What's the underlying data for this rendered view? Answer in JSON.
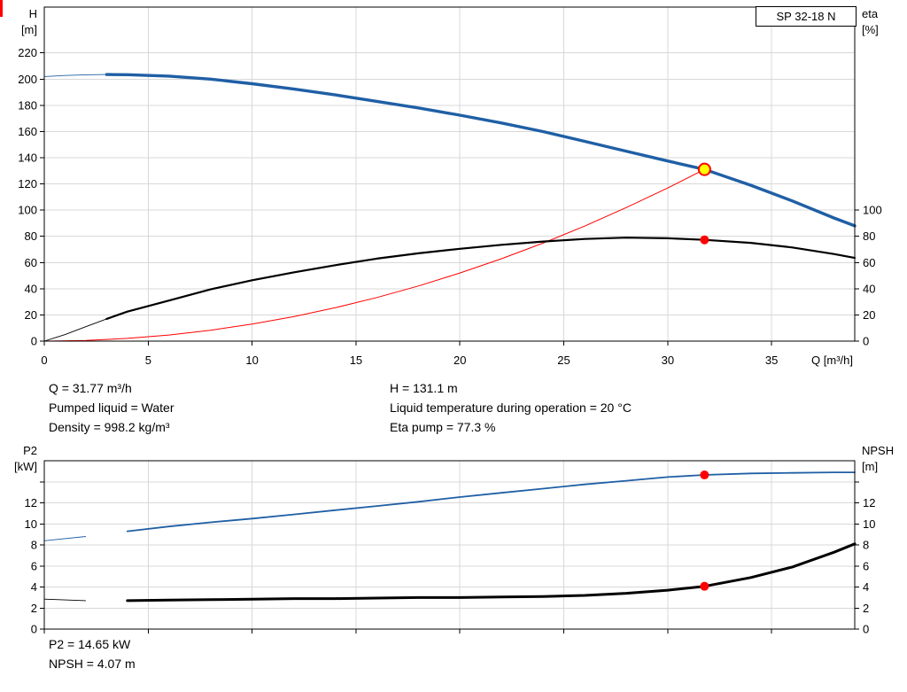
{
  "title_box": {
    "label": "SP 32-18 N"
  },
  "operating_point_info": {
    "left": [
      "Q = 31.77 m³/h",
      "Pumped liquid = Water",
      "Density = 998.2 kg/m³"
    ],
    "right": [
      "H = 131.1 m",
      "Liquid temperature during operation = 20 °C",
      "Eta pump = 77.3 %"
    ]
  },
  "result_info": [
    "P2 = 14.65 kW",
    "NPSH = 4.07 m"
  ],
  "colors": {
    "curve_blue": "#1f5fa5",
    "curve_black": "#000000",
    "curve_red": "#ff0000",
    "duty_fill": "#ffff00",
    "grid": "#d8d8d8",
    "frame": "#000000"
  },
  "chart_data": [
    {
      "id": "head-efficiency",
      "type": "line",
      "x_axis": {
        "label": "Q [m³/h]",
        "min": 0,
        "max": 39,
        "ticks": [
          0,
          5,
          10,
          15,
          20,
          25,
          30,
          35
        ],
        "show_tick_labels": true
      },
      "y_left": {
        "label_lines": [
          "H",
          "[m]"
        ],
        "min": 0,
        "max": 255,
        "ticks": [
          0,
          20,
          40,
          60,
          80,
          100,
          120,
          140,
          160,
          180,
          200,
          220
        ]
      },
      "y_right": {
        "label_lines": [
          "eta",
          "[%]"
        ],
        "ticks": [
          0,
          20,
          40,
          60,
          80,
          100
        ]
      },
      "series": [
        {
          "name": "system-curve",
          "color_key": "curve_red",
          "width": 1,
          "points": [
            [
              0,
              0
            ],
            [
              2,
              0.5
            ],
            [
              4,
              2.1
            ],
            [
              6,
              4.7
            ],
            [
              8,
              8.3
            ],
            [
              10,
              13.0
            ],
            [
              12,
              18.7
            ],
            [
              14,
              25.5
            ],
            [
              16,
              33.3
            ],
            [
              18,
              42.1
            ],
            [
              20,
              52.0
            ],
            [
              22,
              62.9
            ],
            [
              24,
              74.8
            ],
            [
              26,
              87.8
            ],
            [
              28,
              101.9
            ],
            [
              30,
              116.9
            ],
            [
              31.77,
              131.1
            ]
          ]
        },
        {
          "name": "efficiency",
          "color_key": "curve_black",
          "width": 2.2,
          "thin_until": 3,
          "points": [
            [
              0,
              0
            ],
            [
              1,
              5
            ],
            [
              2,
              11
            ],
            [
              3,
              17
            ],
            [
              4,
              22.5
            ],
            [
              6,
              31
            ],
            [
              8,
              39.5
            ],
            [
              10,
              46.5
            ],
            [
              12,
              52.5
            ],
            [
              14,
              58
            ],
            [
              16,
              63
            ],
            [
              18,
              67
            ],
            [
              20,
              70.5
            ],
            [
              22,
              73.5
            ],
            [
              24,
              76
            ],
            [
              26,
              78
            ],
            [
              28,
              79
            ],
            [
              30,
              78.5
            ],
            [
              31.77,
              77.3
            ],
            [
              34,
              75
            ],
            [
              36,
              71.5
            ],
            [
              38,
              66.5
            ],
            [
              39,
              63.5
            ]
          ]
        },
        {
          "name": "head",
          "color_key": "curve_blue",
          "width": 3.4,
          "thin_until": 3,
          "points": [
            [
              0,
              202
            ],
            [
              1,
              202.8
            ],
            [
              2,
              203.3
            ],
            [
              3,
              203.5
            ],
            [
              4,
              203.4
            ],
            [
              6,
              202.3
            ],
            [
              8,
              200
            ],
            [
              10,
              196.5
            ],
            [
              12,
              192.5
            ],
            [
              14,
              188
            ],
            [
              16,
              183
            ],
            [
              18,
              178
            ],
            [
              20,
              172.5
            ],
            [
              22,
              166.5
            ],
            [
              24,
              160
            ],
            [
              26,
              152.5
            ],
            [
              28,
              145
            ],
            [
              30,
              137.5
            ],
            [
              31.77,
              131.1
            ],
            [
              34,
              119
            ],
            [
              36,
              107
            ],
            [
              38,
              94
            ],
            [
              39,
              88
            ]
          ]
        }
      ],
      "markers": [
        {
          "name": "duty-point",
          "x": 31.77,
          "y": 131.1,
          "r": 6.5,
          "fill_key": "duty_fill",
          "stroke_key": "curve_red",
          "stroke_width": 2
        },
        {
          "name": "efficiency-point",
          "x": 31.77,
          "y": 77.3,
          "r": 5,
          "fill_key": "curve_red"
        }
      ]
    },
    {
      "id": "power-npsh",
      "type": "line",
      "x_axis": {
        "label": "",
        "min": 0,
        "max": 39,
        "ticks": [
          0,
          5,
          10,
          15,
          20,
          25,
          30,
          35
        ],
        "show_tick_labels": false
      },
      "y_left": {
        "label_lines": [
          "P2",
          "[kW]"
        ],
        "min": 0,
        "max": 16,
        "ticks": [
          0,
          2,
          4,
          6,
          8,
          10,
          12,
          14
        ],
        "tick_labels": [
          "0",
          "2",
          "4",
          "6",
          "8",
          "10",
          "12",
          ""
        ]
      },
      "y_right": {
        "label_lines": [
          "NPSH",
          "[m]"
        ],
        "ticks": [
          0,
          2,
          4,
          6,
          8,
          10,
          12,
          14
        ],
        "tick_labels": [
          "0",
          "2",
          "4",
          "6",
          "8",
          "10",
          "12",
          ""
        ]
      },
      "series": [
        {
          "name": "power-p2",
          "color_key": "curve_blue",
          "width": 1.8,
          "thin_until": 3,
          "points": [
            [
              0,
              8.4
            ],
            [
              2,
              8.8
            ],
            [
              4,
              9.3
            ],
            [
              6,
              9.75
            ],
            [
              8,
              10.15
            ],
            [
              10,
              10.5
            ],
            [
              12,
              10.9
            ],
            [
              14,
              11.3
            ],
            [
              16,
              11.7
            ],
            [
              18,
              12.1
            ],
            [
              20,
              12.55
            ],
            [
              22,
              12.95
            ],
            [
              24,
              13.35
            ],
            [
              26,
              13.75
            ],
            [
              28,
              14.1
            ],
            [
              30,
              14.45
            ],
            [
              31.77,
              14.65
            ],
            [
              34,
              14.8
            ],
            [
              36,
              14.85
            ],
            [
              38,
              14.9
            ],
            [
              39,
              14.9
            ]
          ]
        },
        {
          "name": "npsh",
          "color_key": "curve_black",
          "width": 3,
          "thin_until": 3,
          "points": [
            [
              0,
              2.85
            ],
            [
              2,
              2.7
            ],
            [
              4,
              2.7
            ],
            [
              6,
              2.75
            ],
            [
              8,
              2.8
            ],
            [
              10,
              2.85
            ],
            [
              12,
              2.9
            ],
            [
              14,
              2.9
            ],
            [
              16,
              2.95
            ],
            [
              18,
              3.0
            ],
            [
              20,
              3.0
            ],
            [
              22,
              3.05
            ],
            [
              24,
              3.1
            ],
            [
              26,
              3.2
            ],
            [
              28,
              3.4
            ],
            [
              30,
              3.7
            ],
            [
              31.77,
              4.07
            ],
            [
              34,
              4.9
            ],
            [
              36,
              5.9
            ],
            [
              38,
              7.3
            ],
            [
              39,
              8.1
            ]
          ]
        }
      ],
      "markers": [
        {
          "name": "power-point",
          "x": 31.77,
          "y": 14.65,
          "r": 5,
          "fill_key": "curve_red"
        },
        {
          "name": "npsh-point",
          "x": 31.77,
          "y": 4.07,
          "r": 5,
          "fill_key": "curve_red"
        }
      ]
    }
  ]
}
